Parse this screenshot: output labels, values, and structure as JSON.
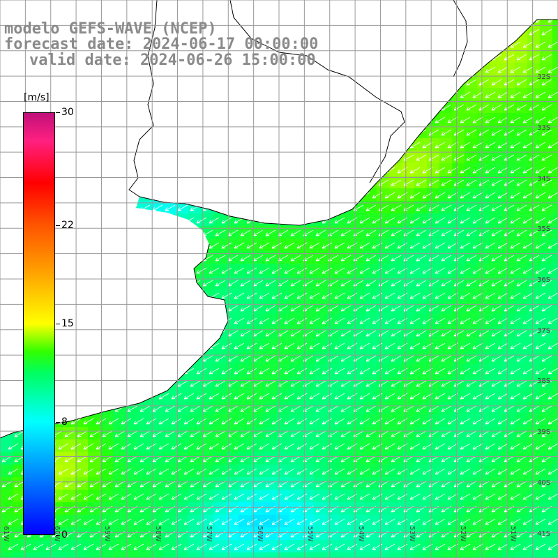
{
  "title": {
    "line1": "modelo GEFS-WAVE (NCEP)",
    "line2": "forecast date: 2024-06-17 00:00:00",
    "line3": "valid date: 2024-06-26 15:00:00"
  },
  "colorbar": {
    "units": "[m/s]",
    "min": 0,
    "max": 30,
    "ticks": [
      {
        "value": 30,
        "label": "30"
      },
      {
        "value": 22,
        "label": "22"
      },
      {
        "value": 15,
        "label": "15"
      },
      {
        "value": 8,
        "label": "8"
      },
      {
        "value": 0,
        "label": "0"
      }
    ],
    "stops": [
      {
        "value": 0,
        "color": "#0000ff"
      },
      {
        "value": 8,
        "color": "#00ffff"
      },
      {
        "value": 11.5,
        "color": "#00ff60"
      },
      {
        "value": 13,
        "color": "#30ff00"
      },
      {
        "value": 15,
        "color": "#ffff00"
      },
      {
        "value": 19,
        "color": "#ff9900"
      },
      {
        "value": 22,
        "color": "#ff5500"
      },
      {
        "value": 25,
        "color": "#ff0000"
      },
      {
        "value": 28,
        "color": "#ff2080"
      },
      {
        "value": 30,
        "color": "#c0107a"
      }
    ]
  },
  "map": {
    "lon_range": [
      -61,
      -50
    ],
    "lat_range": [
      -41.5,
      -30.5
    ],
    "latitude_labels": [
      "32S",
      "33S",
      "34S",
      "35S",
      "36S",
      "37S",
      "38S",
      "39S",
      "40S",
      "41S"
    ],
    "longitude_labels": [
      "61W",
      "60W",
      "59W",
      "58W",
      "57W",
      "56W",
      "55W",
      "54W",
      "53W",
      "52W",
      "51W"
    ],
    "wind_direction": "from NE",
    "land_color": "#ffffff",
    "grid_color": "#999999"
  }
}
